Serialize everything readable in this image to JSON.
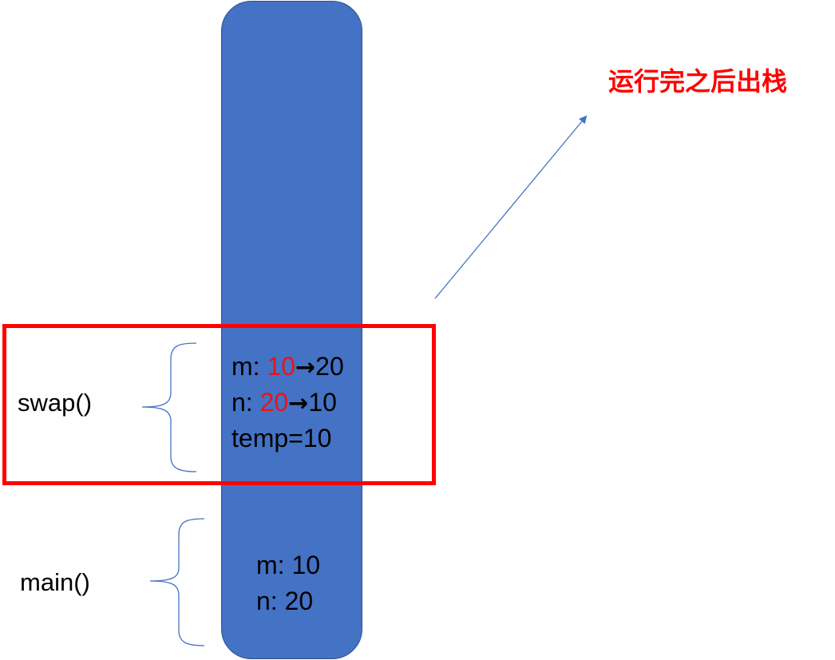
{
  "frames": {
    "swap": {
      "label": "swap()",
      "vars": [
        {
          "name": "m: ",
          "old": "10",
          "arrow": "→",
          "new": "20"
        },
        {
          "name": "n: ",
          "old": "20",
          "arrow": "→",
          "new": "10"
        }
      ],
      "temp": "temp=10"
    },
    "main": {
      "label": "main()",
      "vars": [
        "m: 10",
        "n: 20"
      ]
    }
  },
  "annotation": "运行完之后出栈",
  "colors": {
    "stack": "#4472c4",
    "highlight": "#ff0000",
    "brace": "#4472c4",
    "pointer_arrow": "#4472c4",
    "changed_value": "#e8141a"
  }
}
